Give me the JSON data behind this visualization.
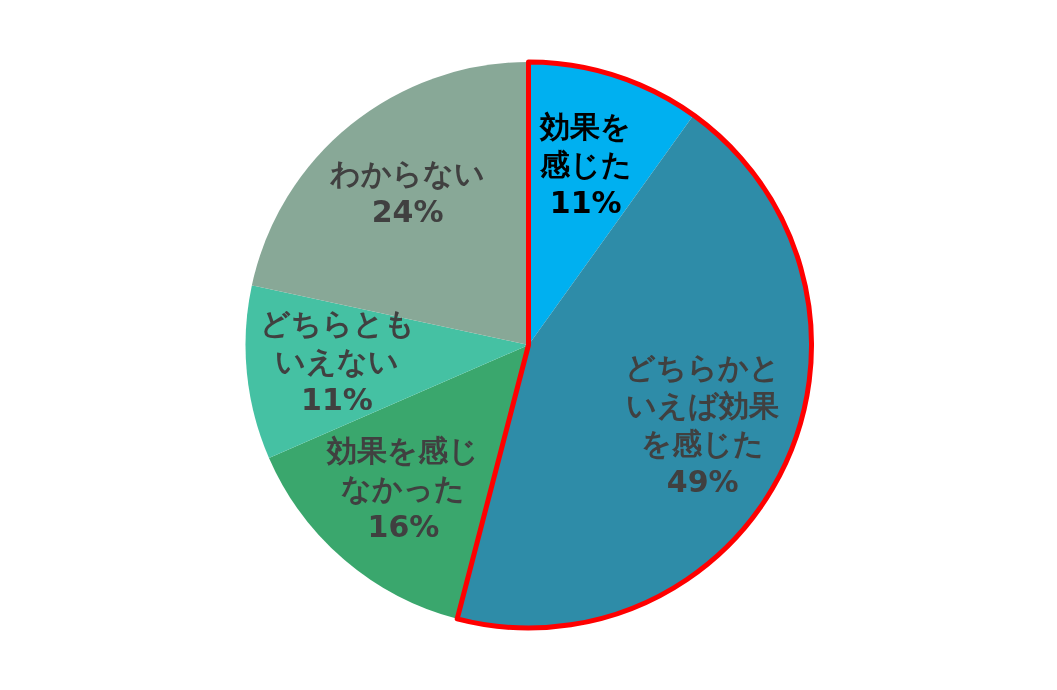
{
  "chart_data": {
    "type": "pie",
    "categories": [
      "効果を感じた",
      "どちらかといえば効果を感じた",
      "効果を感じなかった",
      "どちらともいえない",
      "わからない"
    ],
    "values": [
      11,
      49,
      16,
      11,
      24
    ],
    "value_labels": [
      "11%",
      "49%",
      "16%",
      "11%",
      "24%"
    ],
    "colors": [
      "#00b0f0",
      "#2e8ca8",
      "#3aa76d",
      "#45c1a3",
      "#88a897"
    ],
    "legend": false
  }
}
